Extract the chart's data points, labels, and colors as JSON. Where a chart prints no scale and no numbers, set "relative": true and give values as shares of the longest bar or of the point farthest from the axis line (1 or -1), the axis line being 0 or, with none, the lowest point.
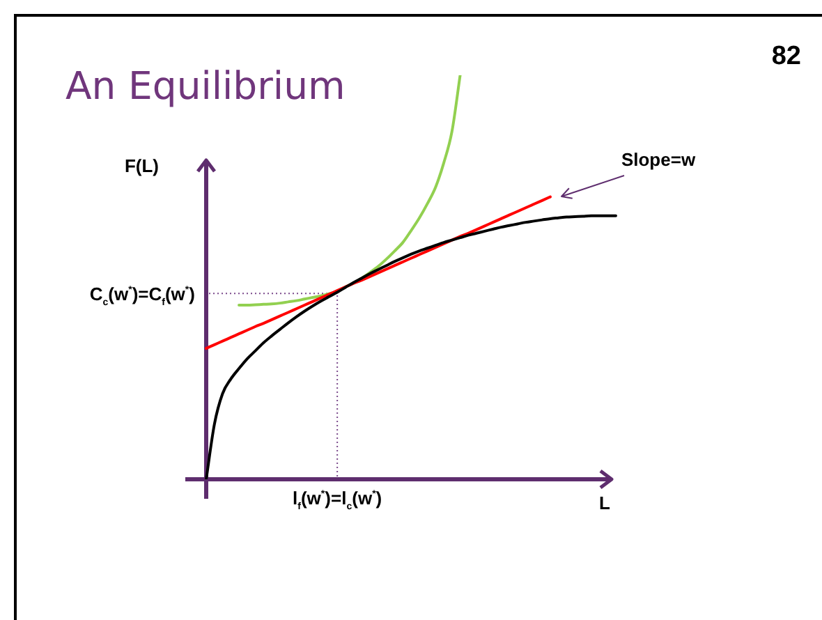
{
  "chart_data": {
    "type": "line",
    "title": "An Equilibrium",
    "xlabel": "L",
    "ylabel": "F(L)",
    "relative": true,
    "marker": "none",
    "categories": [
      null,
      null,
      null,
      null,
      null,
      null,
      null,
      null,
      null,
      null,
      null,
      null,
      null,
      null,
      null,
      null,
      "l$_{f}$(w$^{*}$)=l$_{c}$(w$^{*}$)",
      null,
      null,
      null,
      null,
      null,
      null,
      null,
      null,
      null,
      null,
      null,
      null,
      null,
      null,
      null,
      null,
      null,
      null,
      null,
      null,
      null,
      null,
      null,
      null,
      null,
      null,
      null,
      null,
      null,
      null,
      null,
      null,
      null,
      null
    ],
    "series": [
      {
        "color": "#000000",
        "values": [
          0,
          0.136,
          0.212,
          0.248,
          0.274,
          0.298,
          0.318,
          0.338,
          0.355,
          0.371,
          0.387,
          0.402,
          0.416,
          0.429,
          0.441,
          0.452,
          0.463,
          0.475,
          0.487,
          0.498,
          0.509,
          0.519,
          0.529,
          0.539,
          0.548,
          0.557,
          0.565,
          0.572,
          0.579,
          0.586,
          0.592,
          0.598,
          0.604,
          0.609,
          0.614,
          0.619,
          0.624,
          0.628,
          0.632,
          0.636,
          0.639,
          0.642,
          0.645,
          0.647,
          0.649,
          0.65,
          0.651,
          0.652,
          0.652,
          0.652,
          0.652
        ]
      },
      {
        "name": "Slope=w",
        "color": "#ff0000",
        "values": [
          0.324,
          0.333,
          0.342,
          0.351,
          0.36,
          0.369,
          0.378,
          0.386,
          0.395,
          0.404,
          0.413,
          0.422,
          0.431,
          0.44,
          0.449,
          0.458,
          0.467,
          0.476,
          0.485,
          0.493,
          0.502,
          0.511,
          0.52,
          0.529,
          0.538,
          0.547,
          0.556,
          0.565,
          0.574,
          0.583,
          0.592,
          0.601,
          0.609,
          0.618,
          0.627,
          0.636,
          0.645,
          0.654,
          0.663,
          0.672,
          0.681,
          0.69,
          0.699,
          null,
          null,
          null,
          null,
          null,
          null,
          null,
          null
        ]
      },
      {
        "color": "#92d050",
        "values": [
          null,
          null,
          null,
          null,
          0.431,
          0.431,
          0.432,
          0.433,
          0.434,
          0.436,
          0.439,
          0.442,
          0.446,
          0.45,
          0.454,
          0.459,
          0.466,
          0.476,
          0.486,
          0.498,
          0.512,
          0.527,
          0.545,
          0.565,
          0.586,
          0.615,
          0.646,
          0.682,
          0.723,
          0.783,
          0.861,
          1,
          null,
          null,
          null,
          null,
          null,
          null,
          null,
          null,
          null,
          null,
          null,
          null,
          null,
          null,
          null,
          null,
          null,
          null,
          null
        ]
      }
    ],
    "ref_lines": [
      {
        "axis": "y",
        "value": 0.46,
        "label": "C$_{c}$(w$^{*}$)=C$_{f}$(w$^{*}$)",
        "color": "#7b4a8c",
        "line_style": "dotted"
      },
      {
        "axis": "x",
        "value": "l$_{f}$(w$^{*}$)=l$_{c}$(w$^{*}$)",
        "color": "#7b4a8c",
        "line_style": "dotted"
      }
    ],
    "annotations": [
      "82"
    ]
  }
}
